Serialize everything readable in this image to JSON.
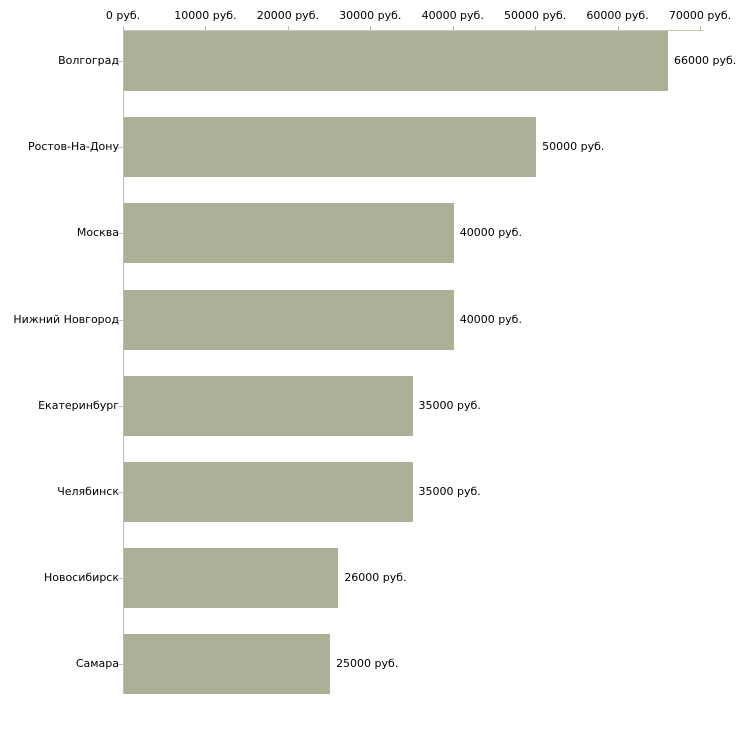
{
  "chart_data": {
    "type": "bar",
    "orientation": "horizontal",
    "title": "",
    "xlabel": "",
    "ylabel": "",
    "categories": [
      "Волгоград",
      "Ростов-На-Дону",
      "Москва",
      "Нижний Новгород",
      "Екатеринбург",
      "Челябинск",
      "Новосибирск",
      "Самара"
    ],
    "values": [
      66000,
      50000,
      40000,
      40000,
      35000,
      35000,
      26000,
      25000
    ],
    "bar_labels": [
      "66000 руб.",
      "50000 руб.",
      "40000 руб.",
      "40000 руб.",
      "35000 руб.",
      "35000 руб.",
      "26000 руб.",
      "25000 руб."
    ],
    "x_ticks": [
      "0 руб.",
      "10000 руб.",
      "20000 руб.",
      "30000 руб.",
      "40000 руб.",
      "50000 руб.",
      "60000 руб.",
      "70000 руб."
    ],
    "x_tick_values": [
      0,
      10000,
      20000,
      30000,
      40000,
      50000,
      60000,
      70000
    ],
    "xlim": [
      0,
      70000
    ],
    "x_axis_position": "top",
    "grid": "off",
    "legend": "none",
    "colors": {
      "bar_fill": "#abb197",
      "x_axis_line": "#c9c6b6",
      "x_tick_mark": "#c4c1ab",
      "y_axis_line": "#bdbdbd",
      "category_tick_mark": "#c8c5a8",
      "text": "#000000",
      "background": "#ffffff"
    }
  }
}
